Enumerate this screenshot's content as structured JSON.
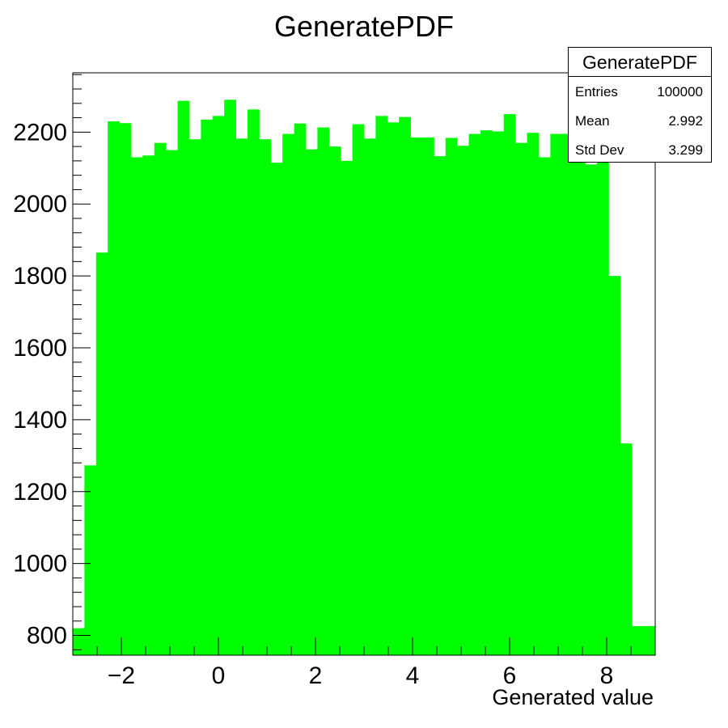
{
  "chart_data": {
    "type": "bar",
    "title": "GeneratePDF",
    "xlabel": "Generated value",
    "ylabel": "",
    "xlim": [
      -3,
      9
    ],
    "ylim": [
      745,
      2365
    ],
    "bin_width": 0.24,
    "x_ticks": [
      -2,
      0,
      2,
      4,
      6,
      8
    ],
    "x_tick_labels": [
      "−2",
      "0",
      "2",
      "4",
      "6",
      "8"
    ],
    "y_ticks": [
      800,
      1000,
      1200,
      1400,
      1600,
      1800,
      2000,
      2200
    ],
    "y_tick_labels": [
      "800",
      "1000",
      "1200",
      "1400",
      "1600",
      "1800",
      "2000",
      "2200"
    ],
    "bar_color": "#00ff00",
    "grid": false,
    "legend": "none",
    "x": [
      -2.88,
      -2.64,
      -2.4,
      -2.16,
      -1.92,
      -1.68,
      -1.44,
      -1.2,
      -0.96,
      -0.72,
      -0.48,
      -0.24,
      0.0,
      0.24,
      0.48,
      0.72,
      0.96,
      1.2,
      1.44,
      1.68,
      1.92,
      2.16,
      2.4,
      2.64,
      2.88,
      3.12,
      3.36,
      3.6,
      3.84,
      4.08,
      4.32,
      4.56,
      4.8,
      5.04,
      5.28,
      5.52,
      5.76,
      6.0,
      6.24,
      6.48,
      6.72,
      6.96,
      7.2,
      7.44,
      7.68,
      7.92,
      8.16,
      8.4,
      8.64,
      8.88
    ],
    "values": [
      820,
      1273,
      1865,
      2230,
      2225,
      2130,
      2135,
      2170,
      2150,
      2287,
      2180,
      2235,
      2245,
      2290,
      2182,
      2263,
      2180,
      2115,
      2195,
      2224,
      2152,
      2213,
      2160,
      2120,
      2222,
      2182,
      2245,
      2227,
      2242,
      2185,
      2185,
      2133,
      2184,
      2162,
      2195,
      2205,
      2202,
      2250,
      2170,
      2198,
      2130,
      2195,
      2195,
      2155,
      2110,
      2180,
      1800,
      1334,
      826,
      826
    ]
  },
  "stats": {
    "title": "GeneratePDF",
    "rows": [
      {
        "key": "Entries",
        "value": "100000"
      },
      {
        "key": "Mean",
        "value": "2.992"
      },
      {
        "key": "Std Dev",
        "value": "3.299"
      }
    ]
  }
}
